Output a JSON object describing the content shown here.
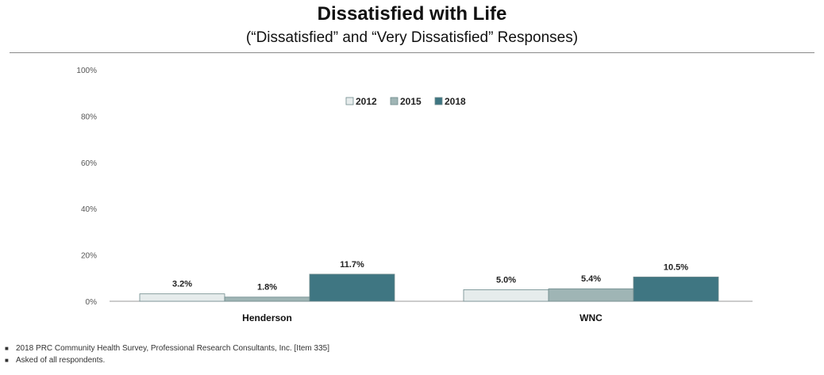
{
  "header": {
    "title": "Dissatisfied with Life",
    "subtitle": "(“Dissatisfied” and “Very Dissatisfied” Responses)"
  },
  "chart_data": {
    "type": "bar",
    "categories": [
      "Henderson",
      "WNC"
    ],
    "series": [
      {
        "name": "2012",
        "values": [
          3.2,
          5.0
        ],
        "labels": [
          "3.2%",
          "5.0%"
        ],
        "color": "#e6ecec"
      },
      {
        "name": "2015",
        "values": [
          1.8,
          5.4
        ],
        "labels": [
          "1.8%",
          "5.4%"
        ],
        "color": "#9fb5b5"
      },
      {
        "name": "2018",
        "values": [
          11.7,
          10.5
        ],
        "labels": [
          "11.7%",
          "10.5%"
        ],
        "color": "#3f7682"
      }
    ],
    "ylim": [
      0,
      100
    ],
    "yticks": [
      0,
      20,
      40,
      60,
      80,
      100
    ],
    "ytick_labels": [
      "0%",
      "20%",
      "40%",
      "60%",
      "80%",
      "100%"
    ],
    "legend_position": "top-center",
    "grid": false
  },
  "footnotes": [
    "2018 PRC Community Health Survey, Professional Research Consultants, Inc. [Item 335]",
    "Asked of all respondents."
  ],
  "bullet_char": "■"
}
